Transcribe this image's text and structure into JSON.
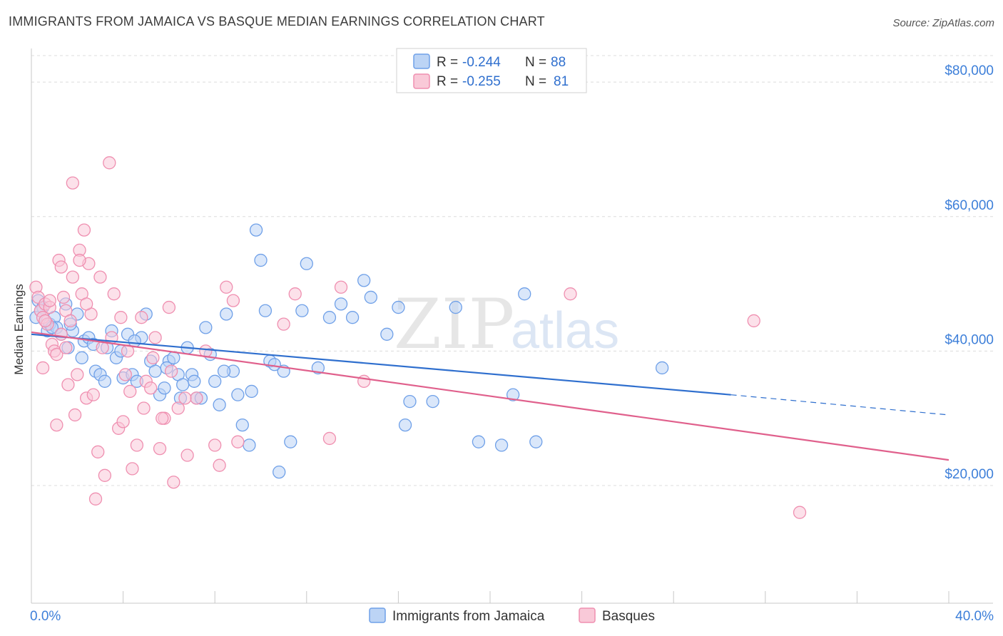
{
  "header": {
    "title": "IMMIGRANTS FROM JAMAICA VS BASQUE MEDIAN EARNINGS CORRELATION CHART",
    "source": "Source: ZipAtlas.com"
  },
  "watermark": {
    "zip": "ZIP",
    "atlas": "atlas"
  },
  "legend": {
    "rows": [
      {
        "r_label": "R =",
        "r_value": "-0.244",
        "n_label": "N =",
        "n_value": "88"
      },
      {
        "r_label": "R =",
        "r_value": "-0.255",
        "n_label": "N =",
        "n_value": "81"
      }
    ]
  },
  "chart_data": {
    "type": "scatter",
    "title": "IMMIGRANTS FROM JAMAICA VS BASQUE MEDIAN EARNINGS CORRELATION CHART",
    "xlabel": "",
    "ylabel": "Median Earnings",
    "xlim": [
      0,
      40
    ],
    "ylim": [
      2500,
      85000
    ],
    "x_tick_labels": [
      "0.0%",
      "40.0%"
    ],
    "y_ticks": [
      20000,
      40000,
      60000,
      80000
    ],
    "y_tick_labels": [
      "$20,000",
      "$40,000",
      "$60,000",
      "$80,000"
    ],
    "grid": true,
    "legend_position": "top-center",
    "series": [
      {
        "name": "Immigrants from Jamaica",
        "color": "#6fa0e8",
        "fill": "#bcd4f5",
        "line_color": "#2f6fce",
        "r": -0.244,
        "n": 88,
        "trend": {
          "x0": 0,
          "y0": 42500,
          "x1": 30.5,
          "y1": 33500,
          "dash_x1": 40,
          "dash_y1": 30500
        },
        "points": [
          [
            0.2,
            45000
          ],
          [
            0.3,
            47500
          ],
          [
            0.5,
            46500
          ],
          [
            0.6,
            44500
          ],
          [
            0.7,
            43000
          ],
          [
            0.8,
            44000
          ],
          [
            1.0,
            45000
          ],
          [
            1.1,
            43500
          ],
          [
            1.3,
            42500
          ],
          [
            1.5,
            47000
          ],
          [
            1.6,
            40500
          ],
          [
            1.8,
            43000
          ],
          [
            2.0,
            45500
          ],
          [
            2.2,
            39000
          ],
          [
            2.3,
            41500
          ],
          [
            2.5,
            42000
          ],
          [
            2.8,
            37000
          ],
          [
            3.0,
            36500
          ],
          [
            3.3,
            40500
          ],
          [
            3.5,
            43000
          ],
          [
            3.7,
            39000
          ],
          [
            4.0,
            36000
          ],
          [
            4.2,
            42500
          ],
          [
            4.4,
            36500
          ],
          [
            4.6,
            35500
          ],
          [
            4.8,
            42000
          ],
          [
            5.0,
            45500
          ],
          [
            5.2,
            38500
          ],
          [
            5.4,
            37000
          ],
          [
            5.6,
            33500
          ],
          [
            5.8,
            34500
          ],
          [
            6.0,
            38500
          ],
          [
            6.2,
            39000
          ],
          [
            6.4,
            36500
          ],
          [
            6.6,
            35000
          ],
          [
            6.8,
            40500
          ],
          [
            7.0,
            36500
          ],
          [
            7.2,
            33000
          ],
          [
            7.4,
            33000
          ],
          [
            7.6,
            43500
          ],
          [
            7.8,
            39500
          ],
          [
            8.0,
            35500
          ],
          [
            8.2,
            32000
          ],
          [
            8.5,
            45500
          ],
          [
            8.8,
            37000
          ],
          [
            9.0,
            33500
          ],
          [
            9.2,
            29000
          ],
          [
            9.5,
            26000
          ],
          [
            9.8,
            58000
          ],
          [
            10.0,
            53500
          ],
          [
            10.2,
            46000
          ],
          [
            10.4,
            38500
          ],
          [
            10.8,
            22000
          ],
          [
            11.0,
            37000
          ],
          [
            11.3,
            26500
          ],
          [
            11.8,
            46000
          ],
          [
            12.0,
            53000
          ],
          [
            13.0,
            45000
          ],
          [
            13.5,
            47000
          ],
          [
            14.0,
            45000
          ],
          [
            14.5,
            50500
          ],
          [
            14.8,
            48000
          ],
          [
            15.5,
            42500
          ],
          [
            16.0,
            46500
          ],
          [
            16.3,
            29000
          ],
          [
            16.5,
            32500
          ],
          [
            17.5,
            32500
          ],
          [
            18.5,
            46500
          ],
          [
            19.5,
            26500
          ],
          [
            20.5,
            26000
          ],
          [
            21.0,
            33500
          ],
          [
            21.5,
            48500
          ],
          [
            22.0,
            26500
          ],
          [
            27.5,
            37500
          ],
          [
            0.4,
            46000
          ],
          [
            1.7,
            44000
          ],
          [
            2.7,
            41000
          ],
          [
            3.9,
            40000
          ],
          [
            4.5,
            41500
          ],
          [
            5.9,
            37500
          ],
          [
            6.5,
            33000
          ],
          [
            7.1,
            35500
          ],
          [
            9.6,
            34000
          ],
          [
            12.5,
            37500
          ],
          [
            10.6,
            38000
          ],
          [
            0.9,
            43500
          ],
          [
            3.2,
            35500
          ],
          [
            8.4,
            37000
          ]
        ]
      },
      {
        "name": "Basques",
        "color": "#ef8fb0",
        "fill": "#f9c9d8",
        "line_color": "#e0608c",
        "r": -0.255,
        "n": 81,
        "trend": {
          "x0": 0,
          "y0": 42800,
          "x1": 40,
          "y1": 23800
        },
        "points": [
          [
            0.2,
            49500
          ],
          [
            0.3,
            48000
          ],
          [
            0.4,
            46000
          ],
          [
            0.5,
            45000
          ],
          [
            0.6,
            47000
          ],
          [
            0.7,
            44000
          ],
          [
            0.8,
            46500
          ],
          [
            0.9,
            41000
          ],
          [
            1.0,
            40000
          ],
          [
            1.1,
            39500
          ],
          [
            1.2,
            53500
          ],
          [
            1.3,
            42500
          ],
          [
            1.4,
            48000
          ],
          [
            1.5,
            46000
          ],
          [
            1.6,
            35000
          ],
          [
            1.7,
            44500
          ],
          [
            1.8,
            51000
          ],
          [
            1.9,
            30500
          ],
          [
            2.0,
            36500
          ],
          [
            2.1,
            55000
          ],
          [
            2.2,
            48500
          ],
          [
            2.3,
            58000
          ],
          [
            2.4,
            33000
          ],
          [
            2.5,
            53000
          ],
          [
            2.6,
            45500
          ],
          [
            2.8,
            18000
          ],
          [
            3.0,
            51000
          ],
          [
            3.2,
            21500
          ],
          [
            3.4,
            68000
          ],
          [
            3.6,
            48500
          ],
          [
            3.8,
            28500
          ],
          [
            4.0,
            29500
          ],
          [
            4.2,
            40000
          ],
          [
            4.4,
            22500
          ],
          [
            4.6,
            26000
          ],
          [
            4.8,
            45000
          ],
          [
            5.0,
            35500
          ],
          [
            5.2,
            34500
          ],
          [
            5.4,
            42000
          ],
          [
            5.6,
            25500
          ],
          [
            5.8,
            30000
          ],
          [
            6.0,
            46500
          ],
          [
            6.2,
            20500
          ],
          [
            6.4,
            31500
          ],
          [
            6.8,
            24500
          ],
          [
            7.2,
            33000
          ],
          [
            8.0,
            26000
          ],
          [
            8.2,
            23000
          ],
          [
            8.5,
            49500
          ],
          [
            8.8,
            47500
          ],
          [
            9.0,
            26500
          ],
          [
            11.0,
            44000
          ],
          [
            11.5,
            48500
          ],
          [
            13.0,
            27000
          ],
          [
            13.5,
            49500
          ],
          [
            14.5,
            35500
          ],
          [
            23.5,
            48500
          ],
          [
            31.5,
            44500
          ],
          [
            33.5,
            16000
          ],
          [
            1.8,
            65000
          ],
          [
            0.5,
            37500
          ],
          [
            1.3,
            52500
          ],
          [
            2.7,
            33500
          ],
          [
            3.9,
            45000
          ],
          [
            4.3,
            34000
          ],
          [
            5.3,
            39000
          ],
          [
            5.7,
            30000
          ],
          [
            6.1,
            37000
          ],
          [
            6.7,
            33000
          ],
          [
            7.6,
            40000
          ],
          [
            0.8,
            47500
          ],
          [
            1.5,
            40500
          ],
          [
            2.1,
            53500
          ],
          [
            3.1,
            40500
          ],
          [
            4.1,
            36500
          ],
          [
            2.9,
            25000
          ],
          [
            1.1,
            29000
          ],
          [
            4.9,
            31500
          ],
          [
            3.5,
            42000
          ],
          [
            0.6,
            44500
          ],
          [
            2.4,
            47000
          ]
        ]
      }
    ]
  },
  "bottom_legend": {
    "items": [
      {
        "label": "Immigrants from Jamaica"
      },
      {
        "label": "Basques"
      }
    ]
  }
}
